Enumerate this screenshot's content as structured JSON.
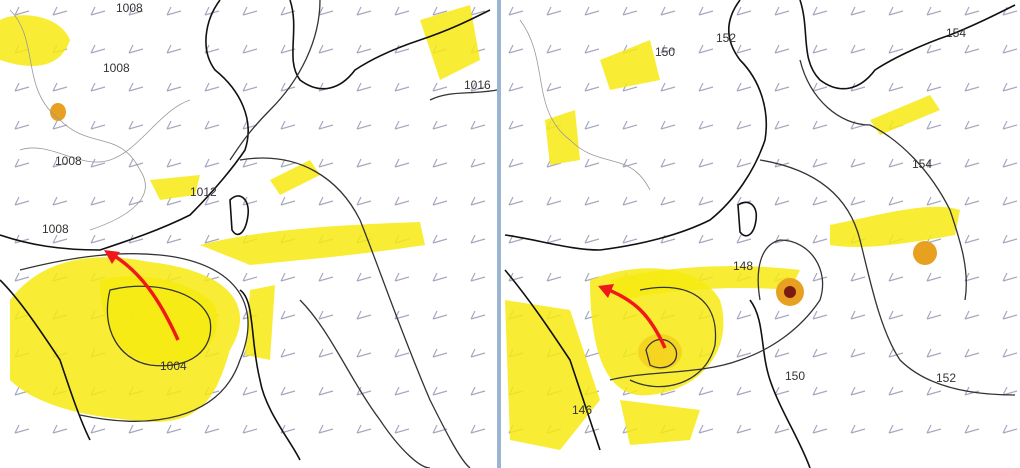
{
  "panels": [
    {
      "contour_labels": [
        "1008",
        "1008",
        "1008",
        "1012",
        "1008",
        "1016",
        "1004"
      ]
    },
    {
      "contour_labels": [
        "150",
        "152",
        "154",
        "154",
        "148",
        "150",
        "146",
        "152"
      ]
    }
  ]
}
